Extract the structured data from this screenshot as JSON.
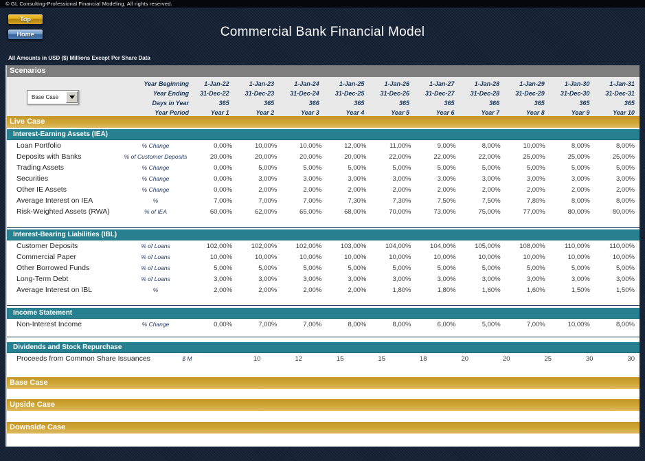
{
  "page": {
    "copyright": "© GL Consulting-Professional Financial Modeling. All rights reserved.",
    "title": "Commercial Bank Financial Model",
    "amounts_note": "All Amounts in USD ($) Millions Except Per Share Data",
    "buttons": {
      "top": "Top",
      "home": "Home"
    }
  },
  "scenarios": {
    "title": "Scenarios",
    "dropdown_value": "Base Case",
    "header_rows": [
      {
        "label": "Year Beginning",
        "values": [
          "1-Jan-22",
          "1-Jan-23",
          "1-Jan-24",
          "1-Jan-25",
          "1-Jan-26",
          "1-Jan-27",
          "1-Jan-28",
          "1-Jan-29",
          "1-Jan-30",
          "1-Jan-31"
        ]
      },
      {
        "label": "Year Ending",
        "values": [
          "31-Dec-22",
          "31-Dec-23",
          "31-Dec-24",
          "31-Dec-25",
          "31-Dec-26",
          "31-Dec-27",
          "31-Dec-28",
          "31-Dec-29",
          "31-Dec-30",
          "31-Dec-31"
        ]
      },
      {
        "label": "Days in Year",
        "values": [
          "365",
          "365",
          "366",
          "365",
          "365",
          "365",
          "366",
          "365",
          "365",
          "365"
        ]
      },
      {
        "label": "Year Period",
        "values": [
          "Year 1",
          "Year 2",
          "Year 3",
          "Year 4",
          "Year 5",
          "Year 6",
          "Year 7",
          "Year 8",
          "Year 9",
          "Year 10"
        ]
      }
    ]
  },
  "live_case": {
    "label": "Live Case"
  },
  "sections": [
    {
      "title": "Interest-Earning Assets (IEA)",
      "rows": [
        {
          "label": "Loan Portfolio",
          "unit": "% Change",
          "values": [
            "0,00%",
            "10,00%",
            "10,00%",
            "12,00%",
            "11,00%",
            "9,00%",
            "8,00%",
            "10,00%",
            "8,00%",
            "8,00%"
          ]
        },
        {
          "label": "Deposits with Banks",
          "unit": "% of Customer Deposits",
          "values": [
            "20,00%",
            "20,00%",
            "20,00%",
            "20,00%",
            "22,00%",
            "22,00%",
            "22,00%",
            "25,00%",
            "25,00%",
            "25,00%"
          ]
        },
        {
          "label": "Trading Assets",
          "unit": "% Change",
          "values": [
            "0,00%",
            "5,00%",
            "5,00%",
            "5,00%",
            "5,00%",
            "5,00%",
            "5,00%",
            "5,00%",
            "5,00%",
            "5,00%"
          ]
        },
        {
          "label": "Securities",
          "unit": "% Change",
          "values": [
            "0,00%",
            "3,00%",
            "3,00%",
            "3,00%",
            "3,00%",
            "3,00%",
            "3,00%",
            "3,00%",
            "3,00%",
            "3,00%"
          ]
        },
        {
          "label": "Other IE Assets",
          "unit": "% Change",
          "values": [
            "0,00%",
            "2,00%",
            "2,00%",
            "2,00%",
            "2,00%",
            "2,00%",
            "2,00%",
            "2,00%",
            "2,00%",
            "2,00%"
          ]
        },
        {
          "label": "Average Interest on IEA",
          "unit": "%",
          "values": [
            "7,00%",
            "7,00%",
            "7,00%",
            "7,30%",
            "7,30%",
            "7,50%",
            "7,50%",
            "7,80%",
            "8,00%",
            "8,00%"
          ]
        },
        {
          "label": "Risk-Weighted Assets (RWA)",
          "unit": "% of IEA",
          "values": [
            "60,00%",
            "62,00%",
            "65,00%",
            "68,00%",
            "70,00%",
            "73,00%",
            "75,00%",
            "77,00%",
            "80,00%",
            "80,00%"
          ]
        }
      ]
    },
    {
      "title": "Interest-Bearing Liabilities (IBL)",
      "rows": [
        {
          "label": "Customer Deposits",
          "unit": "% of Loans",
          "values": [
            "102,00%",
            "102,00%",
            "102,00%",
            "103,00%",
            "104,00%",
            "104,00%",
            "105,00%",
            "108,00%",
            "110,00%",
            "110,00%"
          ]
        },
        {
          "label": "Commercial Paper",
          "unit": "% of Loans",
          "values": [
            "10,00%",
            "10,00%",
            "10,00%",
            "10,00%",
            "10,00%",
            "10,00%",
            "10,00%",
            "10,00%",
            "10,00%",
            "10,00%"
          ]
        },
        {
          "label": "Other Borrowed Funds",
          "unit": "% of Loans",
          "values": [
            "5,00%",
            "5,00%",
            "5,00%",
            "5,00%",
            "5,00%",
            "5,00%",
            "5,00%",
            "5,00%",
            "5,00%",
            "5,00%"
          ]
        },
        {
          "label": "Long-Term Debt",
          "unit": "% of Loans",
          "values": [
            "3,00%",
            "3,00%",
            "3,00%",
            "3,00%",
            "3,00%",
            "3,00%",
            "3,00%",
            "3,00%",
            "3,00%",
            "3,00%"
          ]
        },
        {
          "label": "Average Interest on IBL",
          "unit": "%",
          "values": [
            "2,00%",
            "2,00%",
            "2,00%",
            "2,00%",
            "1,80%",
            "1,80%",
            "1,60%",
            "1,60%",
            "1,50%",
            "1,50%"
          ]
        }
      ]
    },
    {
      "title": "Income Statement",
      "rows": [
        {
          "label": "Non-Interest Income",
          "unit": "% Change",
          "values": [
            "0,00%",
            "7,00%",
            "7,00%",
            "8,00%",
            "8,00%",
            "6,00%",
            "5,00%",
            "7,00%",
            "10,00%",
            "8,00%"
          ]
        }
      ]
    },
    {
      "title": "Dividends and Stock Repurchase",
      "rows": [
        {
          "label": "Proceeds from Common Share Issuances",
          "unit": "$ M",
          "values": [
            "10",
            "12",
            "15",
            "15",
            "18",
            "20",
            "20",
            "25",
            "30",
            "30"
          ]
        }
      ]
    }
  ],
  "case_bands": [
    {
      "label": "Base Case"
    },
    {
      "label": "Upside Case"
    },
    {
      "label": "Downside Case"
    }
  ],
  "colors": {
    "gold": "#cda134",
    "teal": "#27808f",
    "navy_background": "#121e31",
    "scenarios_gray": "#7f7f7f",
    "panel_gray": "#e9e9e9",
    "unit_text_navy": "#1f3864"
  }
}
